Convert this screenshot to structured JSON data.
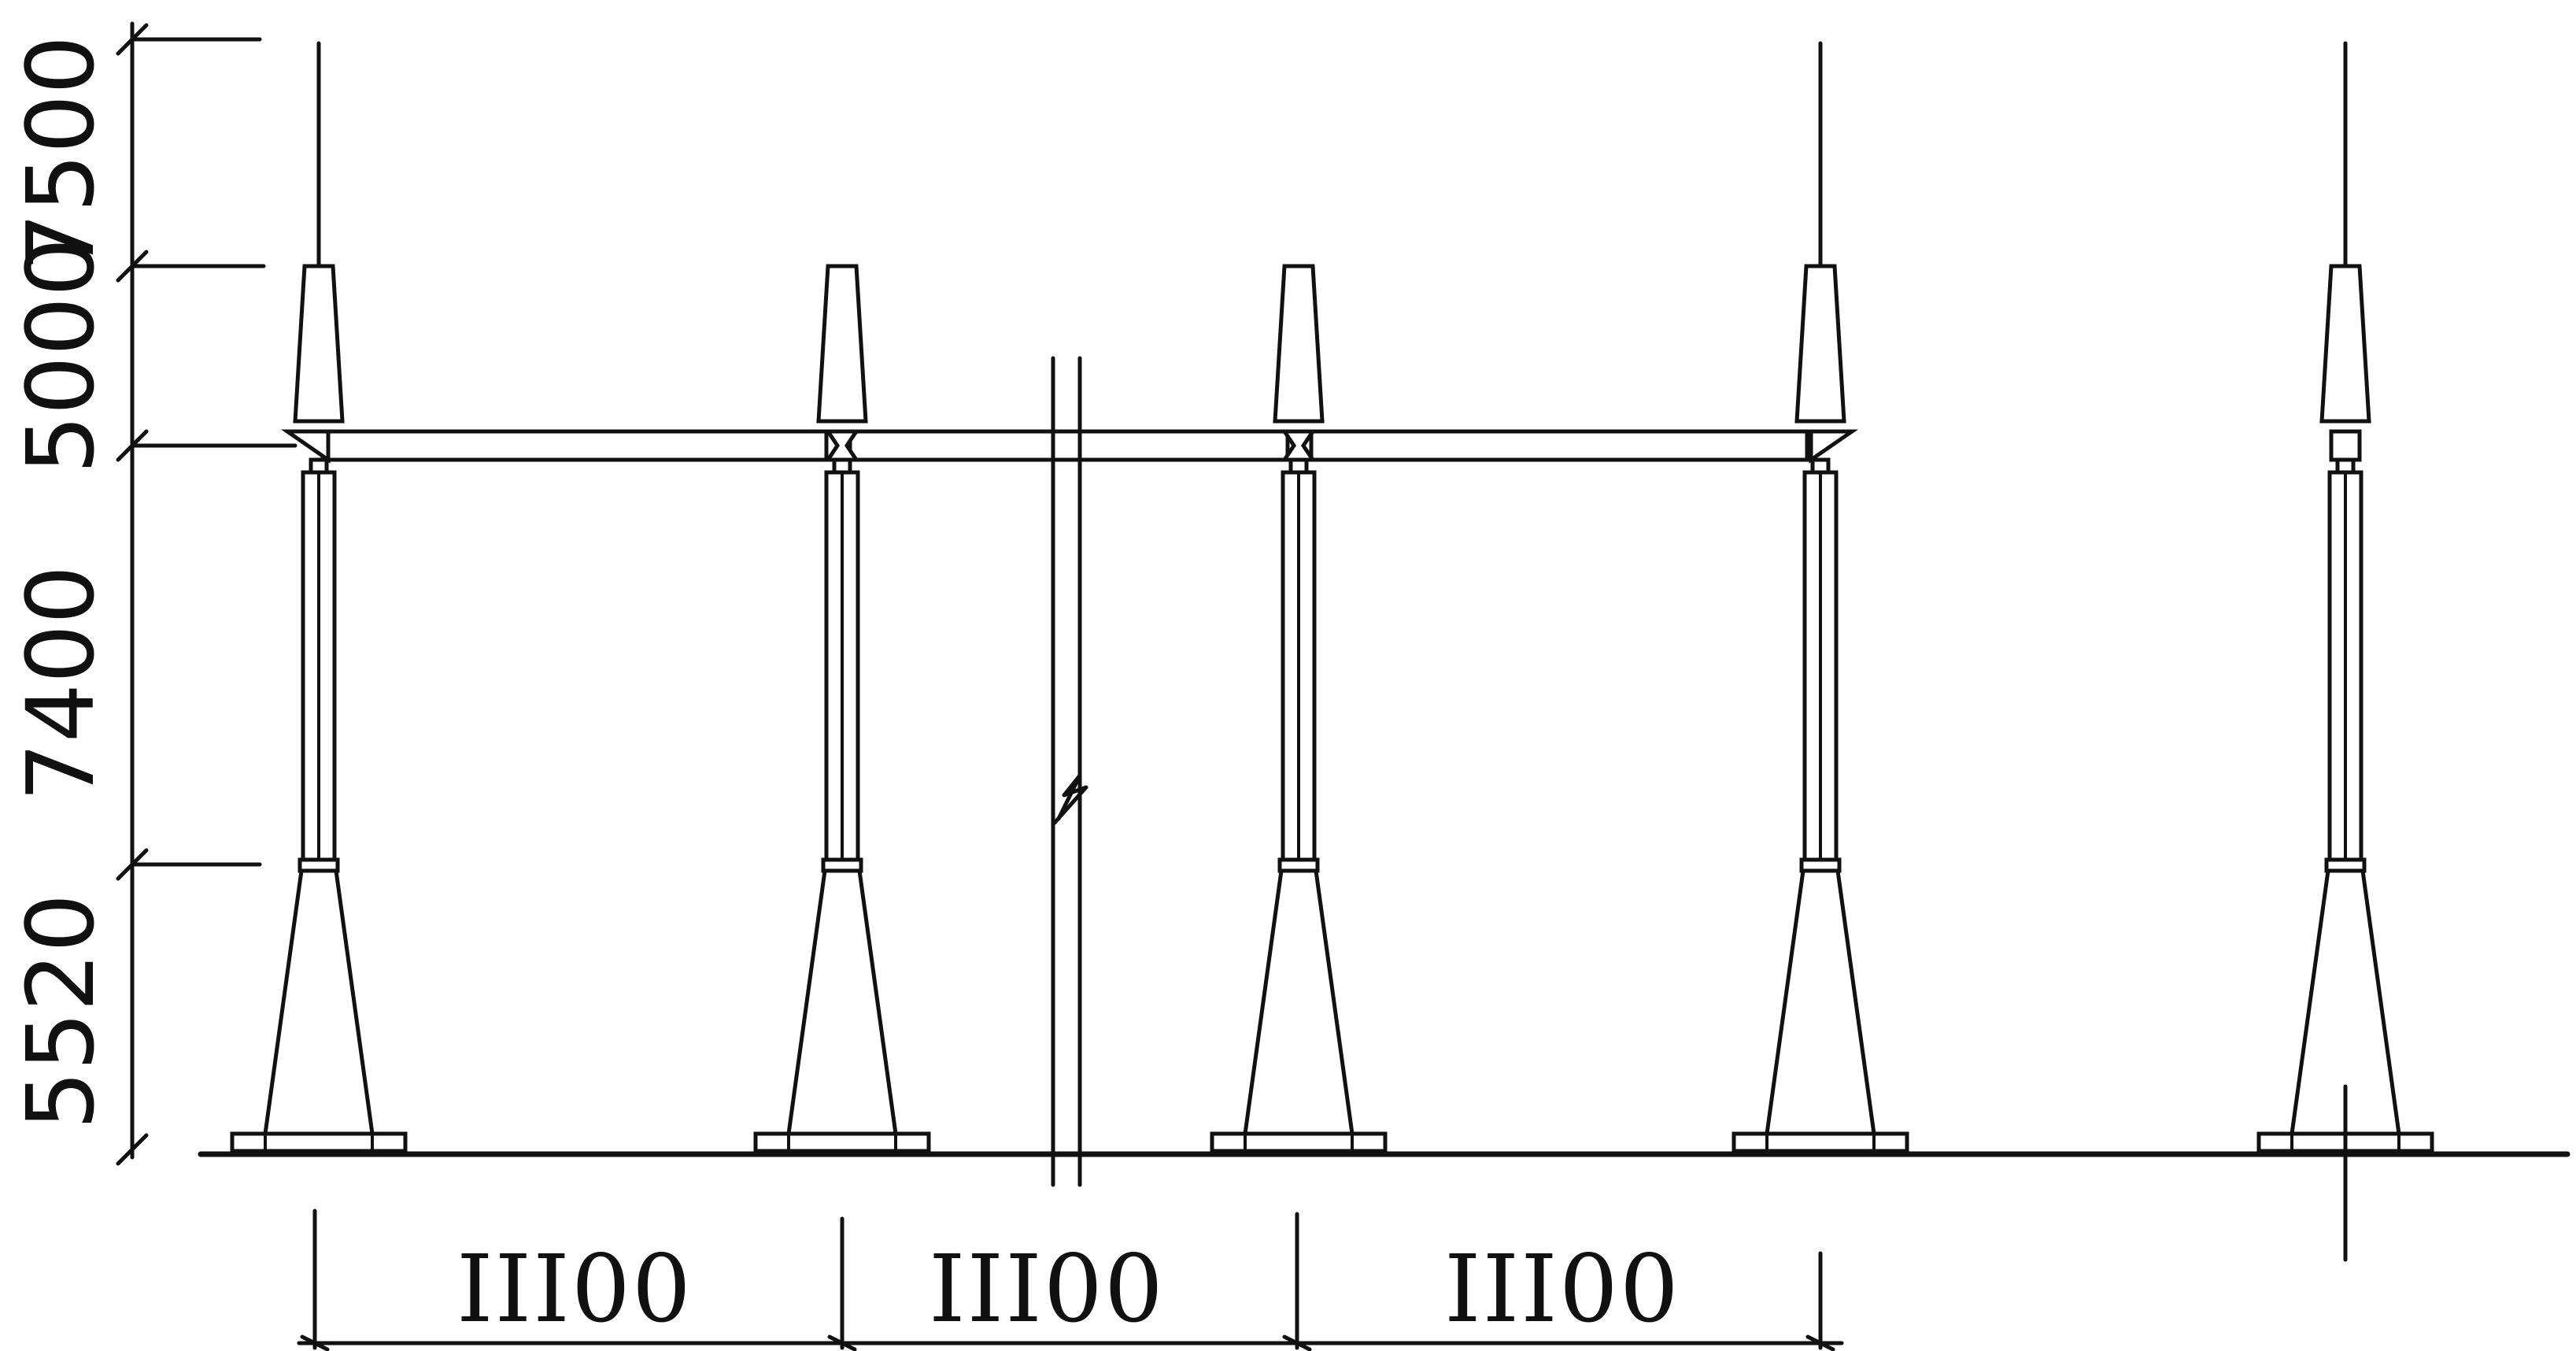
{
  "vertical_dimensions": [
    "7500",
    "5000",
    "7400",
    "5520"
  ],
  "span_dimensions": [
    "III00",
    "III00",
    "III00"
  ]
}
